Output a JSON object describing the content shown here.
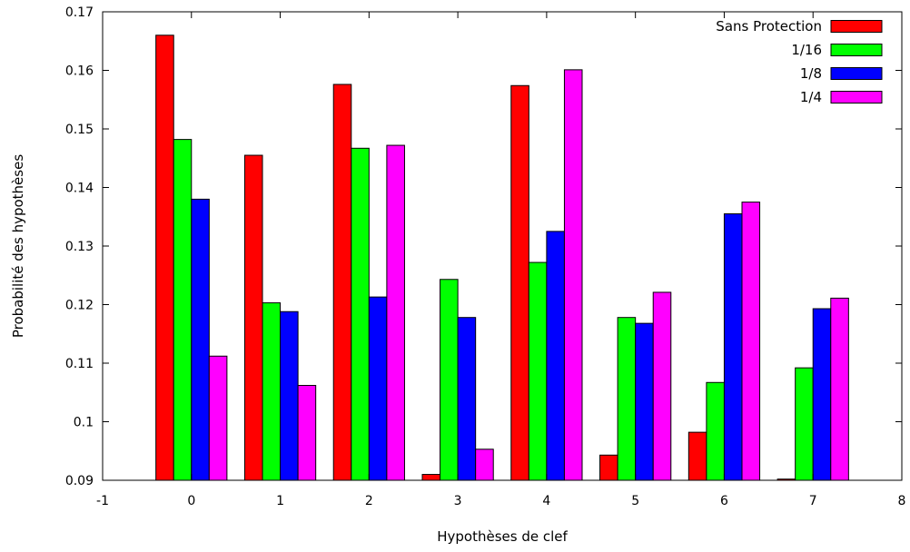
{
  "chart_data": {
    "type": "bar",
    "xlabel": "Hypothèses de clef",
    "ylabel": "Probabilité des hypothèses",
    "xlim": [
      -1,
      8
    ],
    "ylim": [
      0.09,
      0.17
    ],
    "x_ticks": [
      -1,
      0,
      1,
      2,
      3,
      4,
      5,
      6,
      7,
      8
    ],
    "y_ticks": [
      0.09,
      0.1,
      0.11,
      0.12,
      0.13,
      0.14,
      0.15,
      0.16,
      0.17
    ],
    "x_tick_labels": [
      "-1",
      "0",
      "1",
      "2",
      "3",
      "4",
      "5",
      "6",
      "7",
      "8"
    ],
    "y_tick_labels": [
      "0.09",
      "0.1",
      "0.11",
      "0.12",
      "0.13",
      "0.14",
      "0.15",
      "0.16",
      "0.17"
    ],
    "categories": [
      0,
      1,
      2,
      3,
      4,
      5,
      6,
      7
    ],
    "legend_position": "top-right",
    "grid": false,
    "series": [
      {
        "name": "Sans Protection",
        "color": "#ff0000",
        "values": [
          0.166,
          0.1455,
          0.1576,
          0.091,
          0.1574,
          0.0943,
          0.0982,
          0.0902
        ]
      },
      {
        "name": "1/16",
        "color": "#00ff00",
        "values": [
          0.1482,
          0.1203,
          0.1467,
          0.1243,
          0.1272,
          0.1178,
          0.1067,
          0.1092
        ]
      },
      {
        "name": "1/8",
        "color": "#0000ff",
        "values": [
          0.138,
          0.1188,
          0.1213,
          0.1178,
          0.1325,
          0.1168,
          0.1355,
          0.1193
        ]
      },
      {
        "name": "1/4",
        "color": "#ff00ff",
        "values": [
          0.1112,
          0.1062,
          0.1472,
          0.0953,
          0.1601,
          0.1221,
          0.1375,
          0.1211
        ]
      }
    ]
  }
}
